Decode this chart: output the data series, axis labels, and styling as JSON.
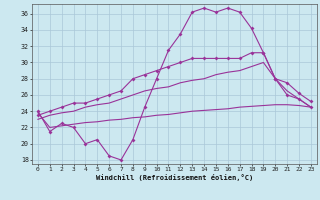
{
  "hours": [
    0,
    1,
    2,
    3,
    4,
    5,
    6,
    7,
    8,
    9,
    10,
    11,
    12,
    13,
    14,
    15,
    16,
    17,
    18,
    19,
    20,
    21,
    22,
    23
  ],
  "line_zigzag": [
    24,
    21.5,
    22.5,
    22,
    20,
    20.5,
    18.5,
    18,
    20.5,
    24.5,
    28,
    31.5,
    33.5,
    36.2,
    36.7,
    36.2,
    36.7,
    36.2,
    34.2,
    31.2,
    28.0,
    26.0,
    25.5,
    24.5
  ],
  "line_upper": [
    23.5,
    24.0,
    24.5,
    25.0,
    25.0,
    25.5,
    26.0,
    26.5,
    28.0,
    28.5,
    29.0,
    29.5,
    30.0,
    30.5,
    30.5,
    30.5,
    30.5,
    30.5,
    31.2,
    31.2,
    28.0,
    27.5,
    26.2,
    25.2
  ],
  "line_middle": [
    23.0,
    23.5,
    23.8,
    24.0,
    24.5,
    24.8,
    25.0,
    25.5,
    26.0,
    26.5,
    26.8,
    27.0,
    27.5,
    27.8,
    28.0,
    28.5,
    28.8,
    29.0,
    29.5,
    30.0,
    28.0,
    26.5,
    25.5,
    24.5
  ],
  "line_flat": [
    23.8,
    22.0,
    22.2,
    22.4,
    22.6,
    22.7,
    22.9,
    23.0,
    23.2,
    23.3,
    23.5,
    23.6,
    23.8,
    24.0,
    24.1,
    24.2,
    24.3,
    24.5,
    24.6,
    24.7,
    24.8,
    24.8,
    24.7,
    24.5
  ],
  "color": "#993399",
  "bg_color": "#cce8f0",
  "grid_color": "#aac8d8",
  "xlabel": "Windchill (Refroidissement éolien,°C)",
  "ylim_min": 17.5,
  "ylim_max": 37.2,
  "yticks": [
    18,
    20,
    22,
    24,
    26,
    28,
    30,
    32,
    34,
    36
  ],
  "xticks": [
    0,
    1,
    2,
    3,
    4,
    5,
    6,
    7,
    8,
    9,
    10,
    11,
    12,
    13,
    14,
    15,
    16,
    17,
    18,
    19,
    20,
    21,
    22,
    23
  ]
}
